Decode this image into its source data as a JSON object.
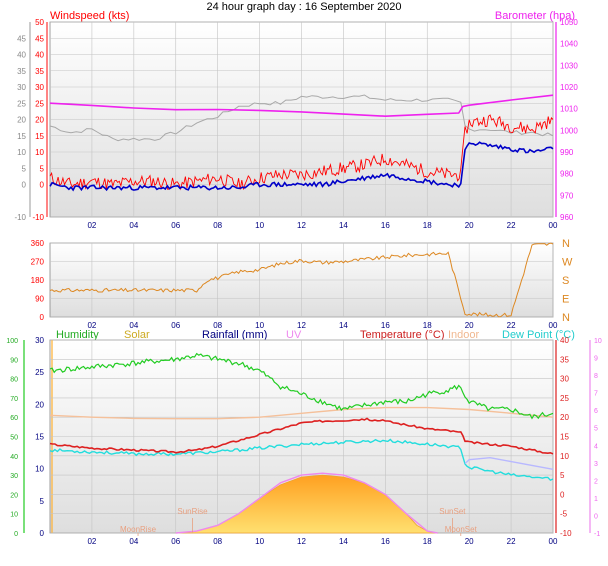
{
  "page_title": "24 hour graph day : 16 September 2020",
  "colors": {
    "background": "#ffffff",
    "plot_top": "#ffffff",
    "plot_bottom": "#dedede",
    "grid": "#c4c4c4",
    "wind": "#ff0000",
    "gust": "#ff0000",
    "wind_avg": "#0000c8",
    "barometer": "#ee22ee",
    "baro_gray": "#a8a8a8",
    "direction": "#dd8822",
    "humidity": "#22cc22",
    "solar": "#ffb030",
    "rainfall": "#000080",
    "uv": "#ee88ee",
    "temperature": "#dd2020",
    "indoor": "#f5c09a",
    "dew_point": "#22dddd",
    "lilac": "#b8b8ff",
    "sun_label": "#e8a080"
  },
  "chart_data": [
    {
      "type": "line",
      "panel": "wind_barometer",
      "x_ticks": [
        "02",
        "04",
        "06",
        "08",
        "10",
        "12",
        "14",
        "16",
        "18",
        "20",
        "22",
        "00"
      ],
      "left_axis": {
        "label": "Windspeed (kts)",
        "range": [
          -10,
          50
        ],
        "ticks": [
          "50",
          "45",
          "40",
          "35",
          "30",
          "25",
          "20",
          "15",
          "10",
          "5",
          "0",
          "-10"
        ]
      },
      "right_axis": {
        "label": "Barometer (hpa)",
        "range": [
          960,
          1050
        ],
        "ticks": [
          "1050",
          "1040",
          "1030",
          "1020",
          "1010",
          "1000",
          "990",
          "980",
          "970",
          "960"
        ]
      },
      "outer_left_ticks": [
        "45",
        "40",
        "35",
        "30",
        "25",
        "20",
        "15",
        "10",
        "5",
        "0",
        "-10"
      ],
      "series": [
        {
          "name": "Barometer",
          "axis": "right",
          "x": [
            0,
            2,
            4,
            6,
            8,
            10,
            12,
            14,
            16,
            18,
            19.5,
            19.7,
            20,
            22,
            24
          ],
          "y": [
            1012.5,
            1011.5,
            1010.3,
            1009.5,
            1009.6,
            1009.2,
            1008.5,
            1007.5,
            1006.5,
            1007.4,
            1008,
            1011,
            1011.6,
            1014,
            1016.2
          ]
        },
        {
          "name": "Wind gust",
          "axis": "left",
          "x": [
            0,
            1,
            2,
            3,
            4,
            5,
            6,
            7,
            8,
            9,
            10,
            11,
            12,
            13,
            14,
            15,
            16,
            17,
            18,
            19,
            19.6,
            19.8,
            20,
            21,
            22,
            23,
            24
          ],
          "y": [
            2,
            0,
            1,
            0,
            1,
            1,
            0,
            1,
            2,
            0,
            2,
            3,
            3,
            4,
            5,
            6,
            8,
            6,
            4,
            3,
            3,
            16,
            19,
            20,
            18,
            17,
            20
          ]
        },
        {
          "name": "Wind average",
          "axis": "left",
          "x": [
            0,
            1,
            2,
            3,
            4,
            5,
            6,
            7,
            8,
            9,
            10,
            11,
            12,
            13,
            14,
            15,
            16,
            17,
            18,
            19,
            19.6,
            19.8,
            20,
            21,
            22,
            23,
            24
          ],
          "y": [
            0,
            -1,
            -1,
            -1,
            -1,
            -1,
            -1,
            -1,
            -1,
            -1,
            0,
            0,
            0,
            0,
            1,
            2,
            3,
            2,
            1,
            0,
            0,
            10,
            13,
            12,
            11,
            10,
            11
          ]
        },
        {
          "name": "Gray trace",
          "axis": "left",
          "x": [
            0,
            1,
            2,
            3,
            4,
            5,
            6,
            7,
            8,
            9,
            10,
            11,
            12,
            13,
            14,
            15,
            16,
            17,
            18,
            19,
            19.6,
            19.8,
            20,
            21,
            22,
            23,
            24
          ],
          "y": [
            18,
            16,
            17,
            14,
            14,
            14,
            16,
            19,
            21,
            24,
            25,
            25,
            27,
            27,
            27,
            27,
            26,
            26,
            26,
            26,
            25,
            18,
            17,
            17,
            16,
            16,
            15
          ]
        }
      ]
    },
    {
      "type": "line",
      "panel": "wind_direction",
      "x_ticks": [
        "02",
        "04",
        "06",
        "08",
        "10",
        "12",
        "14",
        "16",
        "18",
        "20",
        "22",
        "00"
      ],
      "left_axis": {
        "range": [
          0,
          360
        ],
        "ticks": [
          "360",
          "270",
          "180",
          "90",
          "0"
        ]
      },
      "right_axis": {
        "ticks": [
          "N",
          "W",
          "S",
          "E",
          "N"
        ]
      },
      "series": [
        {
          "name": "Direction",
          "x": [
            0,
            1,
            2,
            3,
            4,
            5,
            6,
            7,
            7.5,
            8,
            9,
            10,
            11,
            12,
            13,
            14,
            15,
            16,
            17,
            18,
            19,
            19.8,
            20,
            21,
            22,
            23,
            24
          ],
          "y": [
            130,
            130,
            130,
            130,
            130,
            130,
            130,
            130,
            180,
            190,
            220,
            230,
            260,
            275,
            265,
            270,
            280,
            290,
            300,
            305,
            310,
            20,
            15,
            10,
            10,
            350,
            355
          ]
        }
      ]
    },
    {
      "type": "line",
      "panel": "temperature_humidity",
      "x_ticks": [
        "02",
        "04",
        "06",
        "08",
        "10",
        "12",
        "14",
        "16",
        "18",
        "20",
        "22",
        "00"
      ],
      "legend": [
        "Humidity",
        "Solar",
        "Rainfall (mm)",
        "UV",
        "Temperature (°C)",
        "Indoor",
        "Dew Point (°C)"
      ],
      "axes": {
        "humidity": {
          "range": [
            0,
            100
          ],
          "ticks": [
            "100",
            "90",
            "80",
            "70",
            "60",
            "50",
            "40",
            "30",
            "20",
            "10",
            "0"
          ]
        },
        "solar": {
          "range": [
            0,
            30
          ],
          "ticks": [
            "30",
            "25",
            "20",
            "15",
            "10",
            "5",
            "0"
          ]
        },
        "temperature": {
          "range": [
            -10,
            40
          ],
          "ticks": [
            "40",
            "35",
            "30",
            "25",
            "20",
            "15",
            "10",
            "5",
            "0",
            "-5",
            "-10"
          ]
        },
        "uv": {
          "range": [
            -1,
            10
          ],
          "ticks": [
            "10",
            "9",
            "8",
            "7",
            "6",
            "5",
            "4",
            "3",
            "2",
            "1",
            "0",
            "-1"
          ]
        }
      },
      "series": [
        {
          "name": "Humidity",
          "axis": "temperature",
          "x": [
            0,
            2,
            4,
            6,
            7,
            8,
            9,
            10,
            11,
            12,
            13,
            14,
            15,
            16,
            17,
            18,
            19,
            19.5,
            20,
            21,
            22,
            23,
            24
          ],
          "y": [
            32,
            33,
            34,
            35,
            36,
            35,
            34,
            32,
            28,
            26,
            24,
            22,
            23,
            24,
            24,
            26,
            27,
            28,
            24,
            22,
            22,
            20,
            21
          ]
        },
        {
          "name": "Indoor",
          "axis": "temperature",
          "x": [
            0,
            2,
            4,
            6,
            8,
            10,
            12,
            14,
            16,
            18,
            20,
            22,
            24
          ],
          "y": [
            20.5,
            20,
            19.7,
            19.6,
            19.6,
            20,
            21,
            22,
            22.5,
            22.5,
            22,
            21,
            20
          ]
        },
        {
          "name": "Temperature",
          "axis": "temperature",
          "x": [
            0,
            2,
            4,
            6,
            7,
            8,
            9,
            10,
            11,
            12,
            13,
            14,
            15,
            16,
            17,
            18,
            19,
            19.6,
            19.8,
            20,
            21,
            22,
            23,
            24
          ],
          "y": [
            13,
            12,
            11.5,
            11,
            11.5,
            12.5,
            14,
            15.5,
            17,
            18.5,
            19,
            19.2,
            19.5,
            19,
            18,
            17,
            16.5,
            16,
            14,
            13.5,
            13,
            12.5,
            11.5,
            10.5
          ]
        },
        {
          "name": "Dew Point",
          "axis": "temperature",
          "x": [
            0,
            2,
            4,
            6,
            8,
            10,
            12,
            14,
            16,
            18,
            19,
            19.6,
            19.8,
            20,
            21,
            22,
            23,
            24
          ],
          "y": [
            11.5,
            11,
            10.5,
            10.5,
            11,
            12,
            13,
            13.5,
            14,
            13,
            12.5,
            12,
            8,
            7,
            6,
            5,
            4.5,
            4
          ]
        },
        {
          "name": "Lilac",
          "axis": "temperature",
          "x": [
            19.8,
            20,
            21,
            22,
            23,
            24
          ],
          "y": [
            8,
            9,
            9.5,
            8.5,
            7.5,
            6.5
          ]
        },
        {
          "name": "Solar",
          "axis": "temperature",
          "x": [
            6,
            7,
            8,
            9,
            10,
            11,
            12,
            13,
            14,
            15,
            16,
            17,
            17.5,
            18,
            18.5
          ],
          "y": [
            -10,
            -9.5,
            -8,
            -5,
            -1,
            2.5,
            4.5,
            5,
            4.5,
            3,
            0,
            -5,
            -8,
            -9.5,
            -10
          ]
        },
        {
          "name": "UV",
          "axis": "temperature",
          "x": [
            6,
            7,
            8,
            9,
            10,
            11,
            12,
            13,
            14,
            15,
            16,
            17,
            18,
            18.5
          ],
          "y": [
            -10,
            -9.5,
            -8,
            -5,
            -1,
            3,
            5,
            5.5,
            5,
            3,
            0,
            -5,
            -9.5,
            -10
          ]
        }
      ],
      "annotations": [
        {
          "text": "SunRise",
          "at_hour": 6.8
        },
        {
          "text": "SunSet",
          "at_hour": 19.2
        },
        {
          "text": "MoonRise",
          "at_hour": 4.2
        },
        {
          "text": "MoonSet",
          "at_hour": 19.6
        }
      ]
    }
  ]
}
